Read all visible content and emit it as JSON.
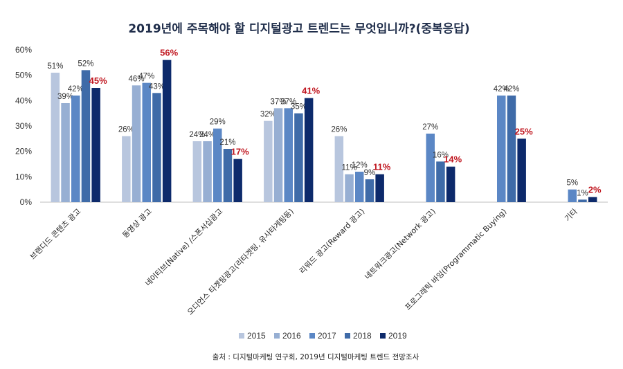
{
  "chart_data": {
    "type": "bar",
    "title": "2019년에 주목해야 할 디지털광고 트렌드는 무엇입니까?(중복응답)",
    "categories": [
      "브랜디드 콘텐츠 광고",
      "동영상 광고",
      "네이티브(Native) /스폰서십광고",
      "오디언스 타겟팅광고(리타겟팅, 유사타게팅등)",
      "리워드 광고(Reward 광고)",
      "네트워크광고(Network 광고)",
      "프로그래틱 바잉(Programmatic Buying)",
      "기타"
    ],
    "series": [
      {
        "name": "2015",
        "color": "#b8c6de",
        "values": [
          51,
          26,
          24,
          32,
          26,
          null,
          null,
          null
        ]
      },
      {
        "name": "2016",
        "color": "#97afd3",
        "values": [
          39,
          46,
          24,
          37,
          11,
          null,
          null,
          null
        ]
      },
      {
        "name": "2017",
        "color": "#5b87c5",
        "values": [
          42,
          47,
          29,
          37,
          12,
          27,
          42,
          5
        ]
      },
      {
        "name": "2018",
        "color": "#3f6ba8",
        "values": [
          52,
          43,
          21,
          35,
          9,
          16,
          42,
          1
        ]
      },
      {
        "name": "2019",
        "color": "#0d2a6b",
        "values": [
          45,
          56,
          17,
          41,
          11,
          14,
          25,
          2
        ]
      }
    ],
    "data_labels": [
      [
        "51%",
        "39%",
        "42%",
        "52%",
        "45%"
      ],
      [
        "26%",
        "46%",
        "47%",
        "43%",
        "56%"
      ],
      [
        "24%",
        "24%",
        "29%",
        "21%",
        "17%"
      ],
      [
        "32%",
        "37%",
        "37%",
        "35%",
        "41%"
      ],
      [
        "26%",
        "11%",
        "12%",
        "9%",
        "11%"
      ],
      [
        "",
        "",
        "27%",
        "16%",
        "14%"
      ],
      [
        "",
        "",
        "42%",
        "42%",
        "25%"
      ],
      [
        "",
        "",
        "5%",
        "1%",
        "2%"
      ]
    ],
    "highlight_color": "#c0161f",
    "y_ticks": [
      "0%",
      "10%",
      "20%",
      "30%",
      "40%",
      "50%",
      "60%"
    ],
    "ylim": [
      0,
      60
    ],
    "grid": false,
    "legend": "bottom",
    "source": "출처 : 디지털마케팅 연구회, 2019년 디지털마케팅 트렌드 전망조사"
  }
}
